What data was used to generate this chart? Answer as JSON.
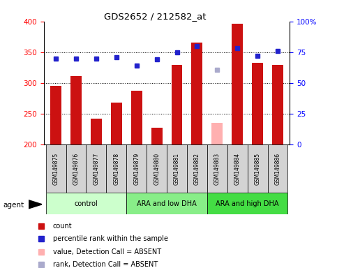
{
  "title": "GDS2652 / 212582_at",
  "samples": [
    "GSM149875",
    "GSM149876",
    "GSM149877",
    "GSM149878",
    "GSM149879",
    "GSM149880",
    "GSM149881",
    "GSM149882",
    "GSM149883",
    "GSM149884",
    "GSM149885",
    "GSM149886"
  ],
  "bar_values": [
    295,
    311,
    242,
    268,
    288,
    228,
    330,
    366,
    null,
    396,
    333,
    330
  ],
  "bar_absent_values": [
    null,
    null,
    null,
    null,
    null,
    null,
    null,
    null,
    235,
    null,
    null,
    null
  ],
  "dot_values": [
    340,
    340,
    340,
    342,
    328,
    338,
    350,
    360,
    null,
    357,
    344,
    352
  ],
  "dot_absent_values": [
    null,
    null,
    null,
    null,
    null,
    null,
    null,
    null,
    322,
    null,
    null,
    null
  ],
  "ylim_left": [
    200,
    400
  ],
  "ylim_right": [
    0,
    100
  ],
  "yticks_left": [
    200,
    250,
    300,
    350,
    400
  ],
  "yticks_right": [
    0,
    25,
    50,
    75,
    100
  ],
  "ytick_labels_right": [
    "0",
    "25",
    "50",
    "75",
    "100%"
  ],
  "hlines": [
    250,
    300,
    350
  ],
  "groups": [
    {
      "label": "control",
      "indices": [
        0,
        1,
        2,
        3
      ],
      "color": "#ccffcc"
    },
    {
      "label": "ARA and low DHA",
      "indices": [
        4,
        5,
        6,
        7
      ],
      "color": "#88ee88"
    },
    {
      "label": "ARA and high DHA",
      "indices": [
        8,
        9,
        10,
        11
      ],
      "color": "#44dd44"
    }
  ],
  "bar_color": "#cc1111",
  "bar_absent_color": "#ffb0b0",
  "dot_color": "#2222cc",
  "dot_absent_color": "#aaaacc",
  "agent_label": "agent",
  "legend_items": [
    {
      "label": "count",
      "color": "#cc1111"
    },
    {
      "label": "percentile rank within the sample",
      "color": "#2222cc"
    },
    {
      "label": "value, Detection Call = ABSENT",
      "color": "#ffb0b0"
    },
    {
      "label": "rank, Detection Call = ABSENT",
      "color": "#aaaacc"
    }
  ],
  "bar_width": 0.55,
  "figsize": [
    4.83,
    3.84
  ],
  "dpi": 100
}
